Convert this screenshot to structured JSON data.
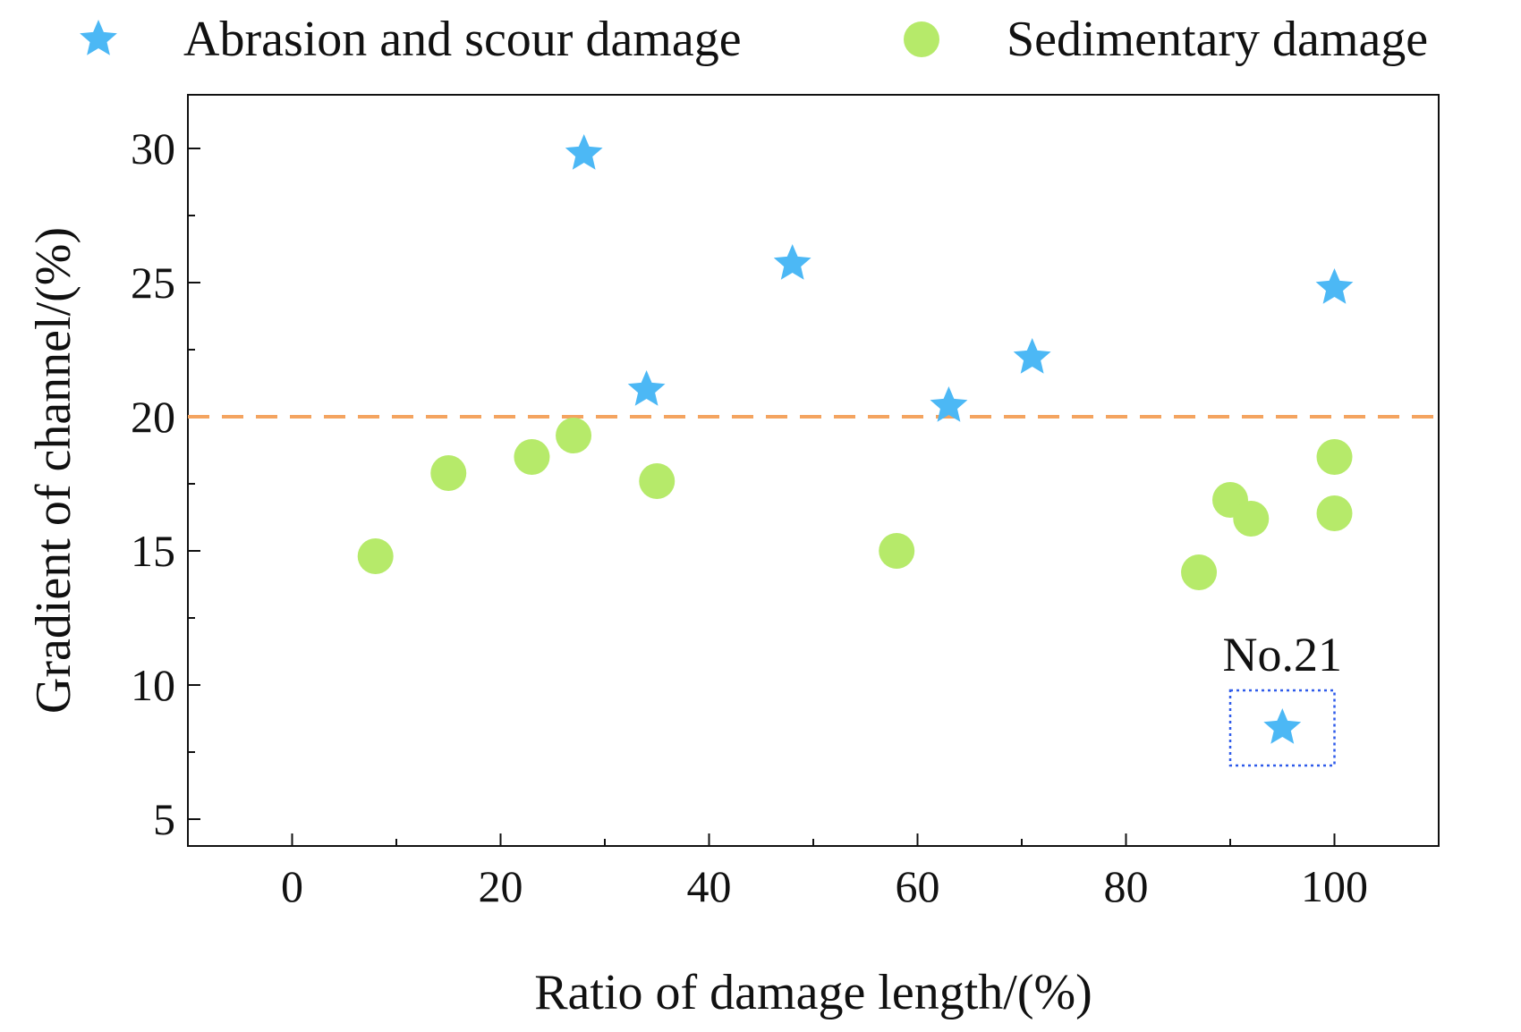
{
  "chart_data": {
    "type": "scatter",
    "title": "",
    "xlabel": "Ratio of damage length/(%)",
    "ylabel": "Gradient of channel/(%)",
    "xlim": [
      -10,
      110
    ],
    "ylim": [
      4,
      32
    ],
    "xticks": [
      0,
      20,
      40,
      60,
      80,
      100
    ],
    "yticks": [
      5,
      10,
      15,
      20,
      25,
      30
    ],
    "grid": false,
    "legend_position": "top",
    "threshold_line": {
      "y": 20,
      "color": "#f4a460",
      "style": "dashed"
    },
    "series": [
      {
        "name": "Abrasion and scour damage",
        "marker": "star",
        "color": "#4cb8f5",
        "points": [
          {
            "x": 28,
            "y": 29.8
          },
          {
            "x": 34,
            "y": 21.0
          },
          {
            "x": 48,
            "y": 25.7
          },
          {
            "x": 63,
            "y": 20.4
          },
          {
            "x": 71,
            "y": 22.2
          },
          {
            "x": 100,
            "y": 24.8
          },
          {
            "x": 95,
            "y": 8.4
          }
        ]
      },
      {
        "name": "Sedimentary damage",
        "marker": "circle",
        "color": "#b6ea6a",
        "points": [
          {
            "x": 8,
            "y": 14.8
          },
          {
            "x": 15,
            "y": 17.9
          },
          {
            "x": 23,
            "y": 18.5
          },
          {
            "x": 27,
            "y": 19.3
          },
          {
            "x": 35,
            "y": 17.6
          },
          {
            "x": 58,
            "y": 15.0
          },
          {
            "x": 87,
            "y": 14.2
          },
          {
            "x": 90,
            "y": 16.9
          },
          {
            "x": 92,
            "y": 16.2
          },
          {
            "x": 100,
            "y": 18.5
          },
          {
            "x": 100,
            "y": 16.4
          }
        ]
      }
    ],
    "annotation": {
      "text": "No.21",
      "target": {
        "x": 95,
        "y": 8.4
      },
      "box_x_range": [
        90,
        100
      ],
      "box_y_range": [
        7.0,
        9.8
      ],
      "box_color": "#2f5bea"
    }
  }
}
